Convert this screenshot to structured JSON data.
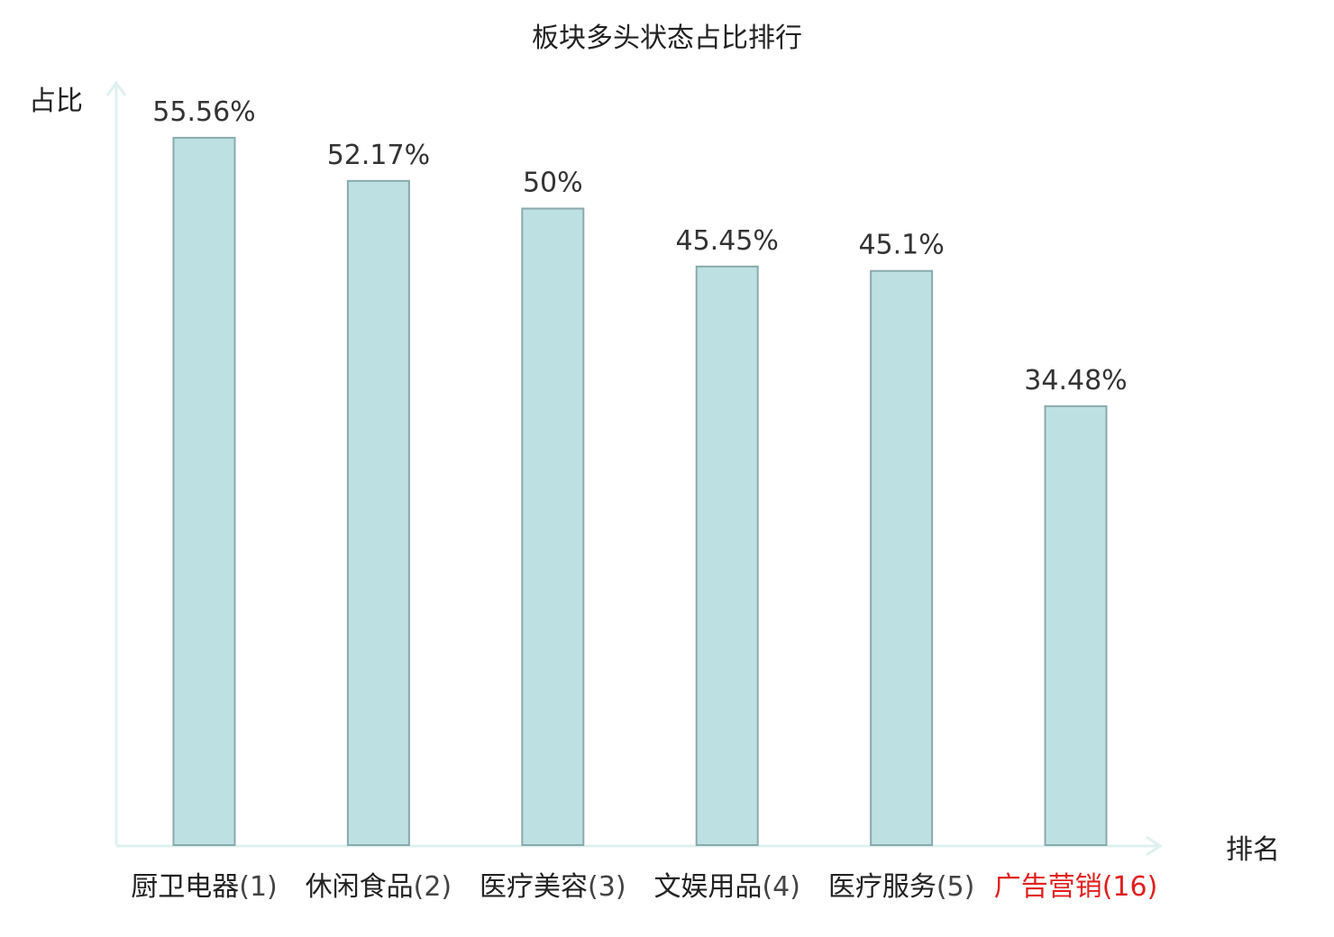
{
  "chart_data": {
    "type": "bar",
    "title": "板块多头状态占比排行",
    "ylabel": "占比",
    "xlabel": "排名",
    "categories": [
      "厨卫电器",
      "休闲食品",
      "医疗美容",
      "文娱用品",
      "医疗服务",
      "广告营销"
    ],
    "ranks": [
      "(1)",
      "(2)",
      "(3)",
      "(4)",
      "(5)",
      "(16)"
    ],
    "values": [
      55.56,
      52.17,
      50,
      45.45,
      45.1,
      34.48
    ],
    "value_labels": [
      "55.56%",
      "52.17%",
      "50%",
      "45.45%",
      "45.1%",
      "34.48%"
    ],
    "highlight_index": 5,
    "ylim": [
      0,
      60
    ],
    "grid": false,
    "legend": "none",
    "colors": {
      "bar_fill": "#bde0e3",
      "bar_stroke": "#8aa9ad",
      "axis": "#dff1ef",
      "text": "#222222",
      "highlight": "#e02020"
    }
  }
}
